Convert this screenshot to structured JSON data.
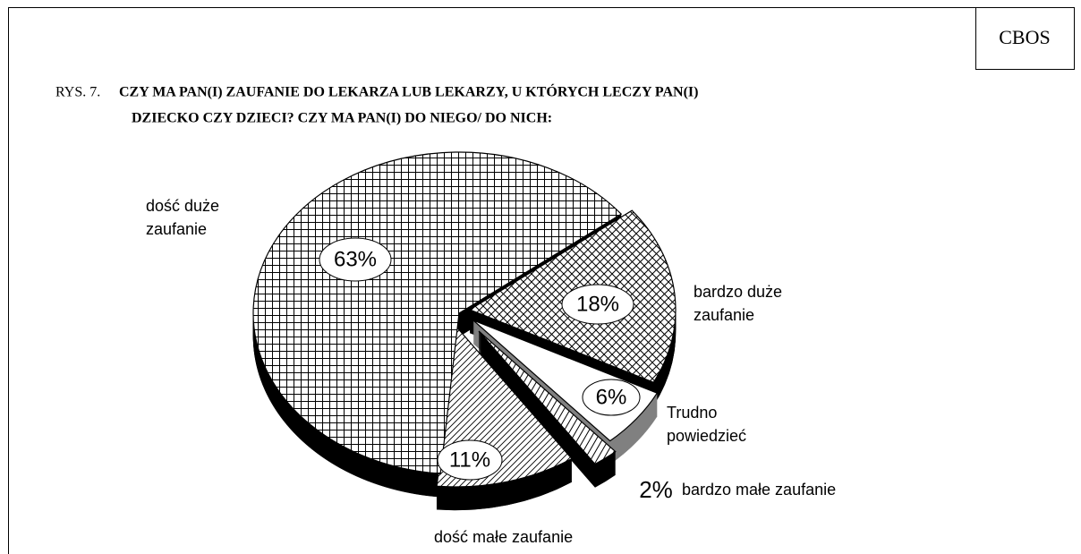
{
  "chart_data": {
    "type": "pie",
    "source": "CBOS",
    "figure_label": "RYS. 7.",
    "title": [
      "CZY MA PAN(I) ZAUFANIE DO LEKARZA LUB LEKARZY, U KTÓRYCH LECZY PAN(I)",
      "DZIECKO CZY DZIECI? CZY MA PAN(I) DO NIEGO/ DO NICH:"
    ],
    "categories": [
      "bardzo duże zaufanie",
      "Trudno powiedzieć",
      "bardzo małe zaufanie",
      "dość małe zaufanie",
      "dość duże zaufanie"
    ],
    "values": [
      18,
      6,
      2,
      11,
      63
    ],
    "value_labels": [
      "18%",
      "6%",
      "2%",
      "11%",
      "63%"
    ],
    "patterns": [
      "crosshatch",
      "none",
      "lines",
      "diagonal",
      "grid"
    ],
    "side_colors": [
      "#000000",
      "#808080",
      "#000000",
      "#000000",
      "#000000"
    ]
  }
}
